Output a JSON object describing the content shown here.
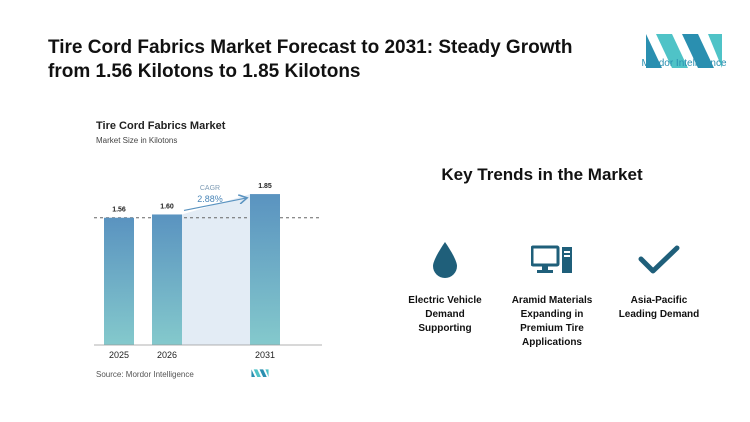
{
  "headline": "Tire Cord Fabrics Market Forecast to 2031: Steady Growth from 1.56 Kilotons to 1.85 Kilotons",
  "brand": {
    "name": "Mordor Intelligence",
    "primary_color": "#2a8fb0",
    "accent_color": "#4fc3c7"
  },
  "chart_data": {
    "type": "bar",
    "title": "Tire Cord Fabrics Market",
    "subtitle": "Market Size in Kilotons",
    "categories": [
      "2025",
      "2026",
      "2031"
    ],
    "values": [
      1.56,
      1.6,
      1.85
    ],
    "value_labels": [
      "1.56",
      "1.60",
      "1.85"
    ],
    "ylim": [
      0,
      1.9
    ],
    "cagr_label": "CAGR",
    "cagr_value": "2.88%",
    "bar_gradient": [
      "#5a93c0",
      "#84c9cc"
    ],
    "grid": false,
    "reference_line": "dashed at 2025 value"
  },
  "source": "Source: Mordor Intelligence",
  "trends": {
    "title": "Key Trends in the Market",
    "items": [
      {
        "icon": "water-drop-icon",
        "label_lines": [
          "Electric Vehicle",
          "Demand",
          "Supporting"
        ]
      },
      {
        "icon": "computer-icon",
        "label_lines": [
          "Aramid Materials",
          "Expanding in",
          "Premium Tire",
          "Applications"
        ]
      },
      {
        "icon": "checkmark-icon",
        "label_lines": [
          "Asia-Pacific",
          "Leading Demand"
        ]
      }
    ]
  },
  "icon_color": "#1f5f7a"
}
